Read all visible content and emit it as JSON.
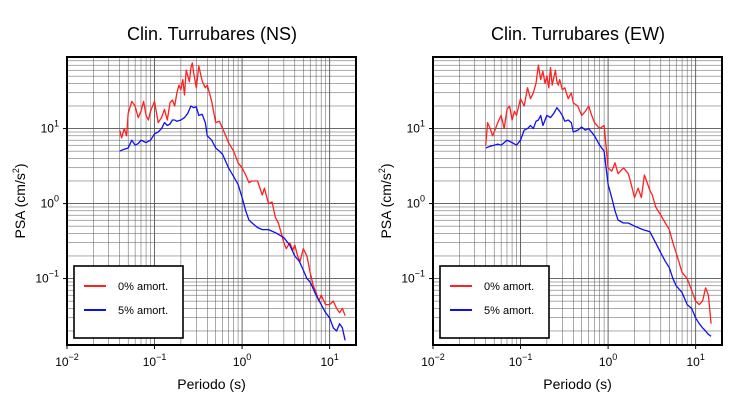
{
  "colors": {
    "damp0": "#ff2020",
    "damp5": "#1010ee",
    "grid": "#555555",
    "frame": "#000000"
  },
  "chart_data": [
    {
      "type": "line",
      "title": "Clin. Turrubares (NS)",
      "xlabel": "Periodo (s)",
      "ylabel_base": "PSA (cm/s",
      "ylabel_sup": "2",
      "ylabel_tail": ")",
      "x_scale": "log",
      "y_scale": "log",
      "xlim": [
        0.01,
        20
      ],
      "ylim": [
        0.013,
        90
      ],
      "grid": true,
      "x_ticks": [
        {
          "base": "10",
          "exp": "−2",
          "v": 0.01
        },
        {
          "base": "10",
          "exp": "−1",
          "v": 0.1
        },
        {
          "base": "10",
          "exp": "0",
          "v": 1
        },
        {
          "base": "10",
          "exp": "1",
          "v": 10
        }
      ],
      "y_ticks": [
        {
          "base": "10",
          "exp": "−1",
          "v": 0.1
        },
        {
          "base": "10",
          "exp": "0",
          "v": 1
        },
        {
          "base": "10",
          "exp": "1",
          "v": 10
        }
      ],
      "legend_position": "bottom-left",
      "series": [
        {
          "name": "0% amort.",
          "color": "#ff2020",
          "x": [
            0.04,
            0.042,
            0.045,
            0.048,
            0.05,
            0.055,
            0.06,
            0.065,
            0.07,
            0.075,
            0.08,
            0.085,
            0.09,
            0.1,
            0.11,
            0.12,
            0.13,
            0.14,
            0.15,
            0.16,
            0.17,
            0.18,
            0.19,
            0.2,
            0.21,
            0.22,
            0.23,
            0.25,
            0.26,
            0.27,
            0.28,
            0.3,
            0.32,
            0.35,
            0.38,
            0.4,
            0.45,
            0.5,
            0.55,
            0.6,
            0.65,
            0.7,
            0.8,
            0.9,
            1.0,
            1.1,
            1.2,
            1.3,
            1.5,
            1.7,
            1.8,
            2.0,
            2.2,
            2.4,
            2.6,
            3.0,
            3.2,
            3.5,
            3.8,
            4.0,
            4.3,
            4.6,
            5.0,
            5.5,
            6.0,
            6.5,
            7.0,
            7.5,
            8.0,
            9.0,
            10.0,
            11.0,
            12.0,
            13.0,
            14.0,
            15.0
          ],
          "y": [
            9.5,
            7.5,
            10.0,
            8.0,
            16.0,
            23.0,
            20.0,
            14.0,
            17.0,
            23.0,
            15.0,
            13.0,
            17.0,
            23.0,
            12.0,
            14.0,
            18.0,
            13.0,
            22.0,
            24.0,
            20.0,
            30.0,
            38.0,
            33.0,
            45.0,
            28.0,
            60.0,
            42.0,
            65.0,
            75.0,
            55.0,
            35.0,
            68.0,
            43.0,
            35.0,
            38.0,
            23.0,
            12.0,
            12.5,
            10.0,
            8.0,
            6.5,
            5.0,
            3.5,
            3.0,
            2.4,
            1.9,
            2.0,
            2.0,
            1.3,
            1.6,
            1.0,
            1.05,
            0.65,
            0.55,
            0.3,
            0.25,
            0.3,
            0.24,
            0.28,
            0.2,
            0.17,
            0.25,
            0.2,
            0.12,
            0.08,
            0.065,
            0.05,
            0.06,
            0.045,
            0.045,
            0.05,
            0.04,
            0.035,
            0.04,
            0.032
          ]
        },
        {
          "name": "5% amort.",
          "color": "#1010ee",
          "x": [
            0.04,
            0.045,
            0.05,
            0.055,
            0.06,
            0.065,
            0.07,
            0.08,
            0.09,
            0.1,
            0.11,
            0.12,
            0.13,
            0.14,
            0.15,
            0.16,
            0.17,
            0.18,
            0.2,
            0.22,
            0.24,
            0.26,
            0.28,
            0.3,
            0.32,
            0.35,
            0.38,
            0.4,
            0.45,
            0.5,
            0.55,
            0.6,
            0.7,
            0.8,
            0.9,
            1.0,
            1.1,
            1.2,
            1.3,
            1.5,
            1.7,
            2.0,
            2.5,
            3.0,
            3.5,
            4.0,
            4.5,
            5.0,
            5.5,
            6.0,
            7.0,
            8.0,
            9.0,
            10.0,
            11.0,
            12.0,
            13.0,
            14.0,
            15.0
          ],
          "y": [
            5.0,
            5.3,
            5.5,
            7.0,
            6.0,
            6.3,
            7.0,
            6.5,
            7.0,
            8.5,
            9.0,
            10.0,
            12.0,
            11.0,
            11.5,
            13.0,
            13.0,
            12.5,
            13.0,
            14.0,
            16.0,
            20.0,
            19.0,
            19.5,
            15.0,
            15.5,
            12.0,
            8.0,
            7.0,
            5.5,
            5.0,
            4.5,
            3.0,
            2.3,
            1.8,
            1.2,
            0.8,
            0.6,
            0.55,
            0.48,
            0.45,
            0.45,
            0.4,
            0.35,
            0.28,
            0.2,
            0.17,
            0.13,
            0.1,
            0.09,
            0.06,
            0.045,
            0.035,
            0.03,
            0.022,
            0.02,
            0.025,
            0.022,
            0.015
          ]
        }
      ]
    },
    {
      "type": "line",
      "title": "Clin. Turrubares (EW)",
      "xlabel": "Periodo (s)",
      "ylabel_base": "PSA (cm/s",
      "ylabel_sup": "2",
      "ylabel_tail": ")",
      "x_scale": "log",
      "y_scale": "log",
      "xlim": [
        0.01,
        20
      ],
      "ylim": [
        0.013,
        90
      ],
      "grid": true,
      "x_ticks": [
        {
          "base": "10",
          "exp": "−2",
          "v": 0.01
        },
        {
          "base": "10",
          "exp": "−1",
          "v": 0.1
        },
        {
          "base": "10",
          "exp": "0",
          "v": 1
        },
        {
          "base": "10",
          "exp": "1",
          "v": 10
        }
      ],
      "y_ticks": [
        {
          "base": "10",
          "exp": "−1",
          "v": 0.1
        },
        {
          "base": "10",
          "exp": "0",
          "v": 1
        },
        {
          "base": "10",
          "exp": "1",
          "v": 10
        }
      ],
      "legend_position": "bottom-left",
      "series": [
        {
          "name": "0% amort.",
          "color": "#ff2020",
          "x": [
            0.04,
            0.042,
            0.045,
            0.048,
            0.05,
            0.055,
            0.06,
            0.065,
            0.07,
            0.075,
            0.08,
            0.085,
            0.09,
            0.1,
            0.11,
            0.12,
            0.13,
            0.14,
            0.15,
            0.16,
            0.17,
            0.18,
            0.19,
            0.2,
            0.21,
            0.22,
            0.23,
            0.25,
            0.26,
            0.27,
            0.28,
            0.3,
            0.32,
            0.35,
            0.38,
            0.4,
            0.45,
            0.5,
            0.55,
            0.6,
            0.65,
            0.7,
            0.8,
            0.9,
            1.0,
            1.1,
            1.2,
            1.3,
            1.5,
            1.7,
            1.8,
            2.0,
            2.2,
            2.4,
            2.6,
            3.0,
            3.2,
            3.5,
            4.0,
            4.5,
            5.0,
            5.5,
            6.0,
            7.0,
            8.0,
            9.0,
            10.0,
            11.0,
            12.0,
            13.0,
            14.0,
            15.0
          ],
          "y": [
            6.0,
            12.0,
            10.0,
            8.0,
            9.0,
            12.0,
            15.0,
            10.0,
            18.0,
            20.0,
            13.0,
            17.0,
            15.0,
            25.0,
            20.0,
            35.0,
            25.0,
            30.0,
            40.0,
            70.0,
            45.0,
            58.0,
            40.0,
            50.0,
            35.0,
            65.0,
            38.0,
            60.0,
            42.0,
            38.0,
            45.0,
            33.0,
            35.0,
            25.0,
            30.0,
            22.0,
            20.0,
            15.0,
            17.0,
            20.0,
            15.0,
            12.0,
            10.0,
            11.0,
            3.0,
            2.7,
            3.5,
            2.5,
            3.0,
            2.5,
            2.0,
            1.2,
            1.6,
            1.2,
            2.4,
            1.5,
            1.3,
            0.9,
            0.7,
            0.55,
            0.45,
            0.3,
            0.22,
            0.12,
            0.1,
            0.07,
            0.05,
            0.045,
            0.05,
            0.075,
            0.06,
            0.025
          ]
        },
        {
          "name": "5% amort.",
          "color": "#1010ee",
          "x": [
            0.04,
            0.045,
            0.05,
            0.055,
            0.06,
            0.065,
            0.07,
            0.08,
            0.09,
            0.1,
            0.11,
            0.12,
            0.13,
            0.14,
            0.15,
            0.16,
            0.17,
            0.18,
            0.2,
            0.22,
            0.24,
            0.26,
            0.28,
            0.3,
            0.32,
            0.35,
            0.38,
            0.4,
            0.45,
            0.5,
            0.55,
            0.6,
            0.7,
            0.8,
            0.9,
            1.0,
            1.1,
            1.2,
            1.3,
            1.5,
            1.7,
            2.0,
            2.5,
            3.0,
            3.5,
            4.0,
            4.5,
            5.0,
            5.5,
            6.0,
            7.0,
            8.0,
            9.0,
            10.0,
            11.0,
            12.0,
            13.0,
            14.0,
            15.0
          ],
          "y": [
            5.5,
            5.8,
            6.0,
            6.2,
            6.0,
            6.5,
            7.0,
            6.5,
            6.0,
            7.0,
            9.5,
            10.0,
            11.0,
            10.0,
            12.5,
            13.0,
            15.0,
            11.0,
            15.0,
            14.0,
            16.0,
            19.0,
            17.0,
            15.0,
            12.5,
            13.0,
            12.0,
            9.0,
            9.5,
            10.5,
            9.5,
            10.0,
            8.0,
            6.0,
            5.0,
            1.8,
            1.2,
            0.8,
            0.6,
            0.55,
            0.55,
            0.5,
            0.45,
            0.42,
            0.3,
            0.22,
            0.17,
            0.14,
            0.1,
            0.08,
            0.065,
            0.045,
            0.04,
            0.03,
            0.025,
            0.022,
            0.02,
            0.018,
            0.017
          ]
        }
      ]
    }
  ]
}
